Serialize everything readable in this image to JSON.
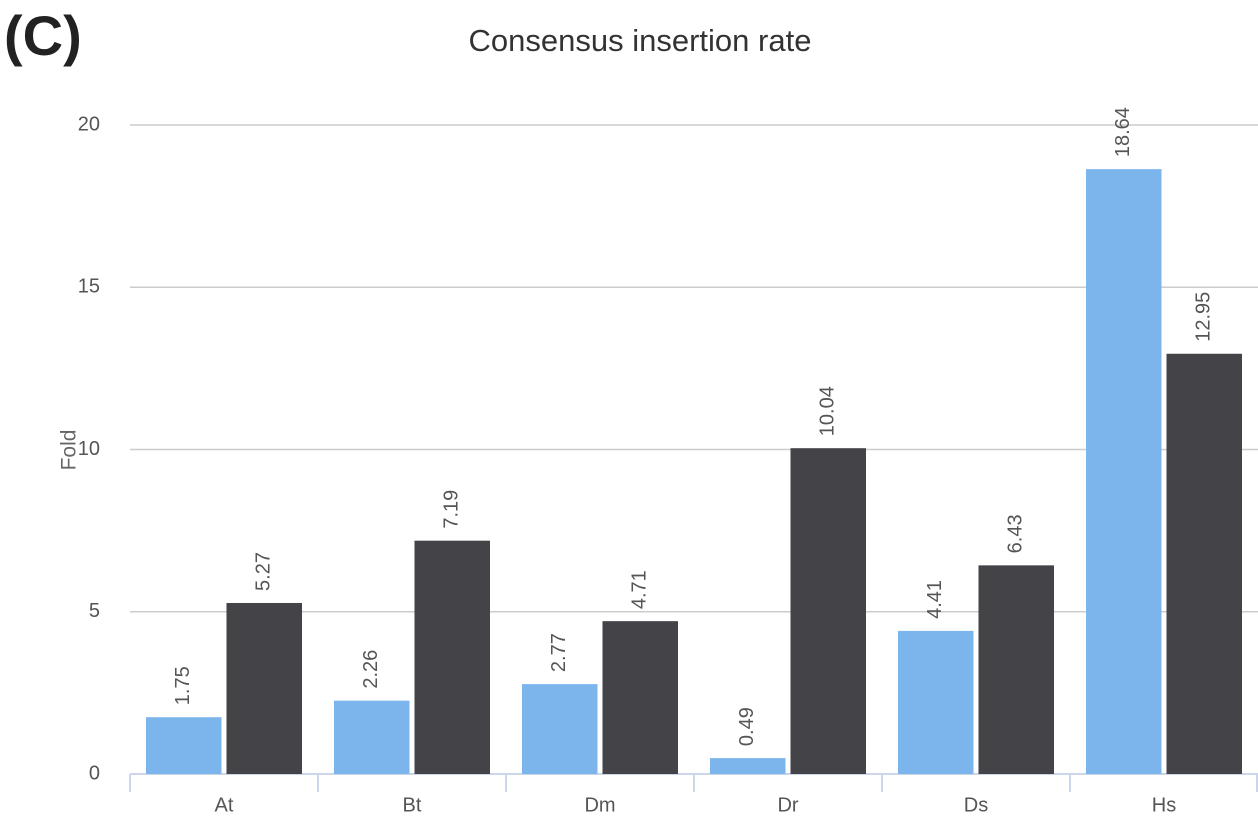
{
  "chart_data": {
    "type": "bar",
    "panel_label": "(C)",
    "title": "Consensus insertion rate",
    "y_label": "Fold",
    "categories": [
      "At",
      "Bt",
      "Dm",
      "Dr",
      "Ds",
      "Hs"
    ],
    "series": [
      {
        "color": "#7cb5ec",
        "values": [
          1.75,
          2.26,
          2.77,
          0.49,
          4.41,
          18.64
        ]
      },
      {
        "color": "#434348",
        "values": [
          5.27,
          7.19,
          4.71,
          10.04,
          6.43,
          12.95
        ]
      }
    ],
    "ylim": [
      0,
      20
    ],
    "yticks": [
      0,
      5,
      10,
      15,
      20
    ],
    "grid": true
  }
}
